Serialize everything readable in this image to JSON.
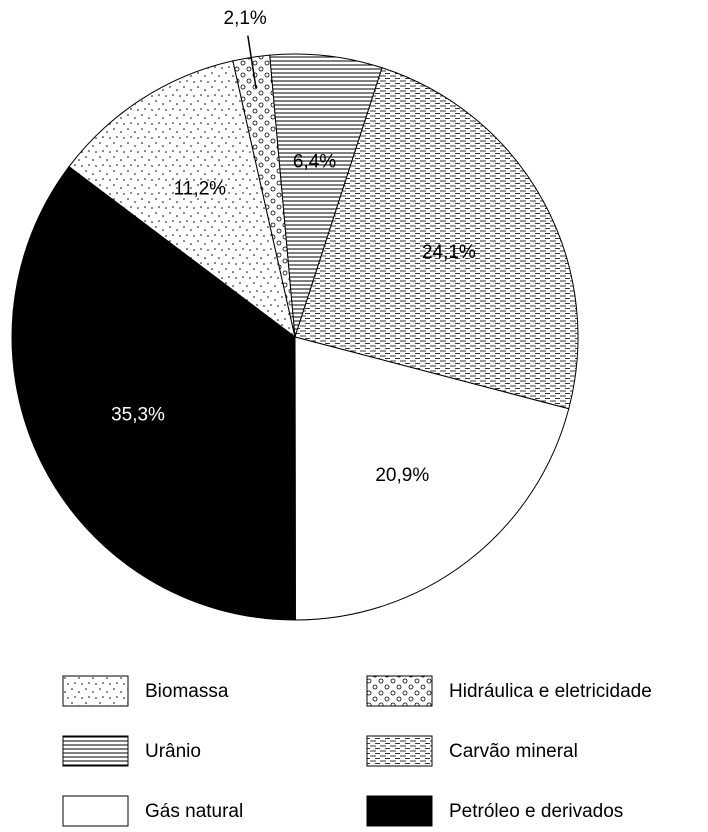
{
  "chart_data": {
    "type": "pie",
    "categories": [
      "Biomassa",
      "Hidráulica e eletricidade",
      "Urânio",
      "Carvão mineral",
      "Gás natural",
      "Petróleo e derivados"
    ],
    "values": [
      11.2,
      2.1,
      6.4,
      24.1,
      20.9,
      35.3
    ],
    "value_labels": [
      "11,2%",
      "2,1%",
      "6,4%",
      "24,1%",
      "20,9%",
      "35,3%"
    ],
    "patterns": [
      "dots",
      "circles",
      "hlines",
      "dashes",
      "none",
      "solid"
    ],
    "start_angle": -53,
    "direction": "clockwise",
    "legend": "bottom"
  }
}
